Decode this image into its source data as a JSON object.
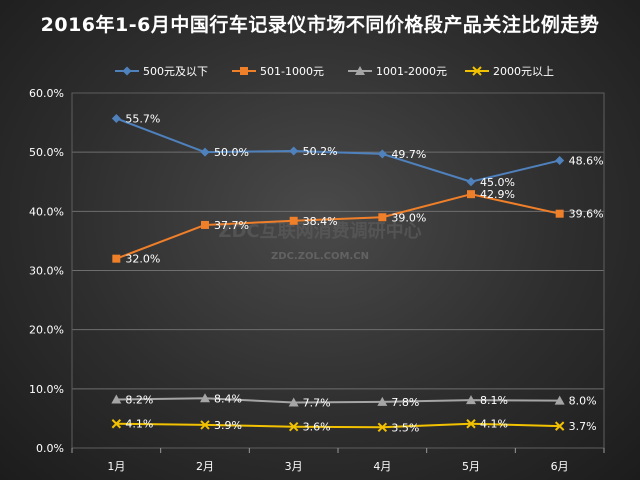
{
  "chart_data": {
    "type": "line",
    "title": "2016年1-6月中国行车记录仪市场不同价格段产品关注比例走势",
    "categories": [
      "1月",
      "2月",
      "3月",
      "4月",
      "5月",
      "6月"
    ],
    "y_ticks": [
      "0.0%",
      "10.0%",
      "20.0%",
      "30.0%",
      "40.0%",
      "50.0%",
      "60.0%"
    ],
    "ylim": [
      0,
      60
    ],
    "xlabel": "",
    "ylabel": "",
    "grid": true,
    "legend_position": "top",
    "series": [
      {
        "name": "500元及以下",
        "values": [
          55.7,
          50.0,
          50.2,
          49.7,
          45.0,
          48.6
        ],
        "labels": [
          "55.7%",
          "50.0%",
          "50.2%",
          "49.7%",
          "45.0%",
          "48.6%"
        ],
        "color": "#4f81bd",
        "marker": "diamond"
      },
      {
        "name": "501-1000元",
        "values": [
          32.0,
          37.7,
          38.4,
          39.0,
          42.9,
          39.6
        ],
        "labels": [
          "32.0%",
          "37.7%",
          "38.4%",
          "39.0%",
          "42.9%",
          "39.6%"
        ],
        "color": "#f07f2a",
        "marker": "square"
      },
      {
        "name": "1001-2000元",
        "values": [
          8.2,
          8.4,
          7.7,
          7.8,
          8.1,
          8.0
        ],
        "labels": [
          "8.2%",
          "8.4%",
          "7.7%",
          "7.8%",
          "8.1%",
          "8.0%"
        ],
        "color": "#a5a5a5",
        "marker": "triangle"
      },
      {
        "name": "2000元以上",
        "values": [
          4.1,
          3.9,
          3.6,
          3.5,
          4.1,
          3.7
        ],
        "labels": [
          "4.1%",
          "3.9%",
          "3.6%",
          "3.5%",
          "4.1%",
          "3.7%"
        ],
        "color": "#f2c200",
        "marker": "cross"
      }
    ],
    "watermark": {
      "main": "ZDC互联网消费调研中心",
      "sub": "ZDC.ZOL.COM.CN"
    }
  }
}
